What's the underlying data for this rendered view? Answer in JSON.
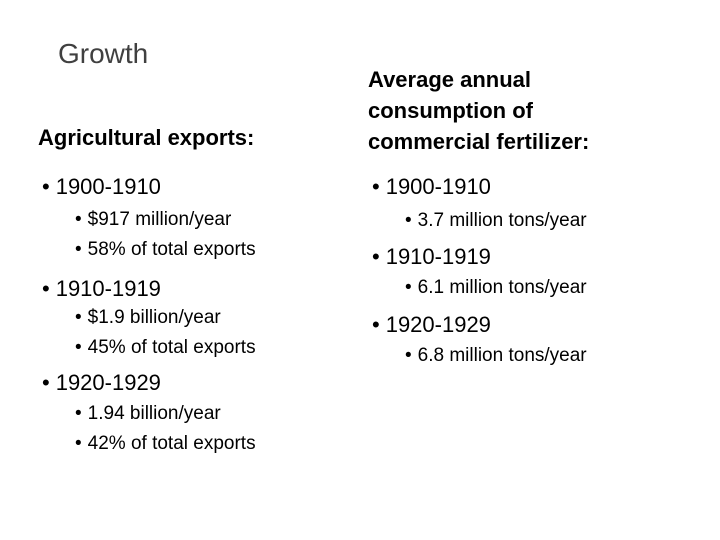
{
  "title": "Growth",
  "left": {
    "heading": "Agricultural exports:",
    "periods": [
      {
        "label": "1900-1910",
        "details": [
          "$917 million/year",
          "58% of total exports"
        ]
      },
      {
        "label": "1910-1919",
        "details": [
          "$1.9 billion/year",
          "45% of total exports"
        ]
      },
      {
        "label": "1920-1929",
        "details": [
          "1.94 billion/year",
          "42% of total exports"
        ]
      }
    ]
  },
  "right": {
    "heading_lines": [
      "Average annual",
      "consumption of",
      "commercial fertilizer:"
    ],
    "periods": [
      {
        "label": "1900-1910",
        "details": [
          "3.7 million tons/year"
        ]
      },
      {
        "label": "1910-1919",
        "details": [
          "6.1 million tons/year"
        ]
      },
      {
        "label": "1920-1929",
        "details": [
          "6.8 million tons/year"
        ]
      }
    ]
  },
  "bullet_char": "•"
}
